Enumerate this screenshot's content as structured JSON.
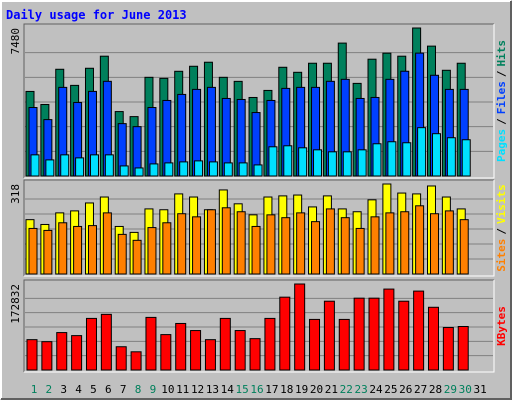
{
  "chart_data": [
    {
      "type": "bar",
      "title": "Daily usage for June 2013",
      "ylim": [
        0,
        7480
      ],
      "yticks": [
        7480
      ],
      "legend_separator": "/",
      "series": [
        {
          "name": "Hits",
          "color": "#00805c",
          "values": [
            4274,
            3613,
            5394,
            4580,
            5445,
            6055,
            3256,
            3002,
            4987,
            4936,
            5292,
            5546,
            5750,
            4987,
            4783,
            3969,
            4325,
            5495,
            5241,
            5699,
            5699,
            6717,
            4681,
            5903,
            6208,
            6055,
            7480,
            6564,
            5343,
            5699,
            null
          ]
        },
        {
          "name": "Files",
          "color": "#0040ff",
          "values": [
            3461,
            2850,
            4479,
            3716,
            4276,
            4785,
            2647,
            2494,
            3461,
            3818,
            4123,
            4377,
            4479,
            3919,
            3868,
            3207,
            3818,
            4428,
            4479,
            4479,
            4785,
            4886,
            3919,
            3970,
            4886,
            5294,
            6210,
            5090,
            4377,
            4377,
            null
          ]
        },
        {
          "name": "Pages",
          "color": "#00e0ff",
          "values": [
            1069,
            814,
            1069,
            916,
            1069,
            1069,
            509,
            407,
            611,
            662,
            713,
            764,
            713,
            662,
            662,
            560,
            1476,
            1527,
            1425,
            1323,
            1222,
            1222,
            1323,
            1629,
            1731,
            1680,
            2443,
            2138,
            1934,
            1832,
            null
          ]
        }
      ]
    },
    {
      "type": "bar",
      "ylim": [
        0,
        318
      ],
      "yticks": [
        318
      ],
      "legend_separator": "/",
      "series": [
        {
          "name": "Visits",
          "color": "#ffff00",
          "values": [
            192,
            175,
            216,
            223,
            251,
            272,
            168,
            147,
            230,
            227,
            283,
            272,
            227,
            297,
            248,
            209,
            272,
            276,
            279,
            237,
            276,
            230,
            220,
            262,
            318,
            286,
            283,
            311,
            272,
            230,
            null
          ]
        },
        {
          "name": "Sites",
          "color": "#ff8000",
          "values": [
            161,
            154,
            181,
            168,
            171,
            216,
            140,
            119,
            164,
            181,
            213,
            202,
            227,
            234,
            220,
            168,
            209,
            199,
            216,
            185,
            230,
            199,
            161,
            202,
            216,
            220,
            241,
            213,
            223,
            192,
            null
          ]
        }
      ]
    },
    {
      "type": "bar",
      "ylim": [
        0,
        172832
      ],
      "yticks": [
        172832
      ],
      "categories": [
        "1",
        "2",
        "3",
        "4",
        "5",
        "6",
        "7",
        "8",
        "9",
        "10",
        "11",
        "12",
        "13",
        "14",
        "15",
        "16",
        "17",
        "18",
        "19",
        "20",
        "21",
        "22",
        "23",
        "24",
        "25",
        "26",
        "27",
        "28",
        "29",
        "30",
        "31"
      ],
      "category_colors": [
        "#00805c",
        "#00805c",
        "#000000",
        "#000000",
        "#000000",
        "#000000",
        "#000000",
        "#00805c",
        "#00805c",
        "#000000",
        "#000000",
        "#000000",
        "#000000",
        "#000000",
        "#00805c",
        "#00805c",
        "#000000",
        "#000000",
        "#000000",
        "#000000",
        "#000000",
        "#00805c",
        "#00805c",
        "#000000",
        "#000000",
        "#000000",
        "#000000",
        "#000000",
        "#00805c",
        "#00805c",
        "#000000"
      ],
      "series": [
        {
          "name": "KBytes",
          "color": "#ff0000",
          "values": [
            61000,
            56924,
            75221,
            69122,
            103683,
            111815,
            46759,
            36594,
            105716,
            71155,
            93518,
            79287,
            60990,
            103683,
            79287,
            63023,
            103683,
            146376,
            172832,
            101650,
            138244,
            101650,
            144343,
            144343,
            162640,
            138244,
            158574,
            126046,
            85386,
            87419,
            null
          ]
        }
      ]
    }
  ]
}
